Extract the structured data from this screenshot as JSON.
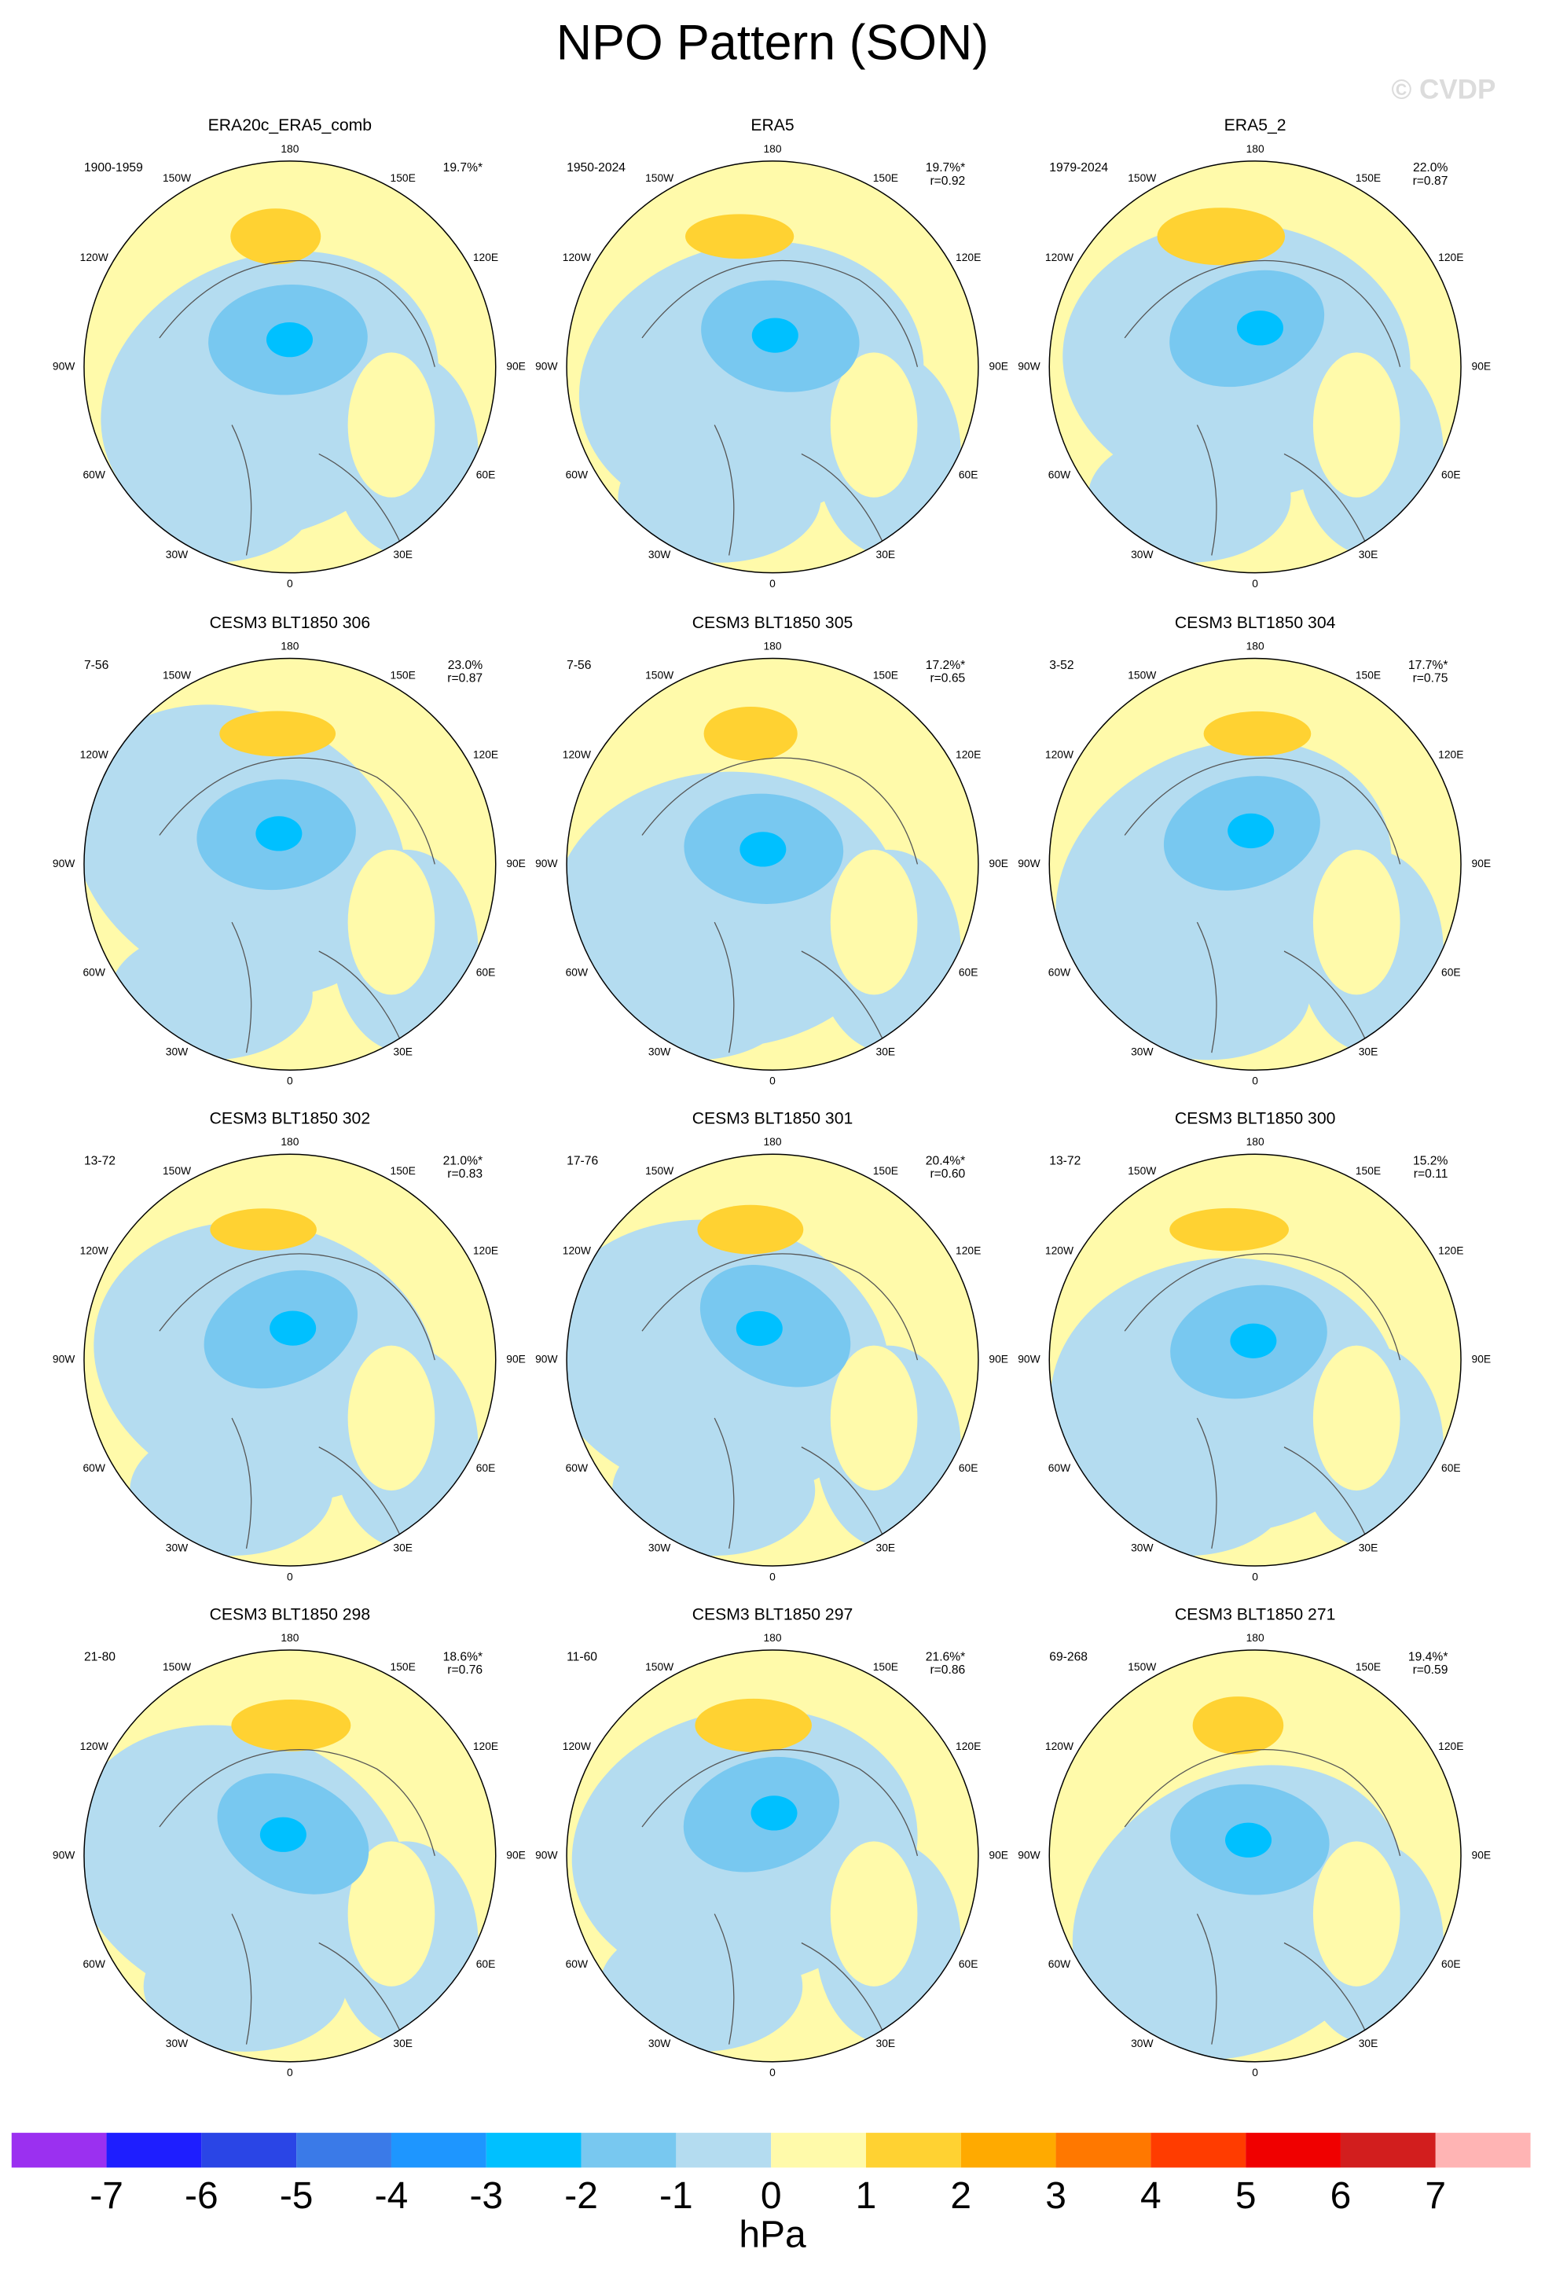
{
  "title": "NPO Pattern (SON)",
  "watermark": "© CVDP",
  "longitude_labels": [
    "180",
    "150E",
    "120E",
    "90E",
    "60E",
    "30E",
    "0",
    "30W",
    "60W",
    "90W",
    "120W",
    "150W"
  ],
  "panels": [
    {
      "title": "ERA20c_ERA5_comb",
      "period": "1900-1959",
      "percent": "19.7%*"
    },
    {
      "title": "ERA5",
      "period": "1950-2024",
      "percent": "19.7%*",
      "r": "r=0.92"
    },
    {
      "title": "ERA5_2",
      "period": "1979-2024",
      "percent": "22.0%",
      "r": "r=0.87"
    },
    {
      "title": "CESM3 BLT1850 306",
      "period": "7-56",
      "percent": "23.0%",
      "r": "r=0.87"
    },
    {
      "title": "CESM3 BLT1850 305",
      "period": "7-56",
      "percent": "17.2%*",
      "r": "r=0.65"
    },
    {
      "title": "CESM3 BLT1850 304",
      "period": "3-52",
      "percent": "17.7%*",
      "r": "r=0.75"
    },
    {
      "title": "CESM3 BLT1850 302",
      "period": "13-72",
      "percent": "21.0%*",
      "r": "r=0.83"
    },
    {
      "title": "CESM3 BLT1850 301",
      "period": "17-76",
      "percent": "20.4%*",
      "r": "r=0.60"
    },
    {
      "title": "CESM3 BLT1850 300",
      "period": "13-72",
      "percent": "15.2%",
      "r": "r=0.11"
    },
    {
      "title": "CESM3 BLT1850 298",
      "period": "21-80",
      "percent": "18.6%*",
      "r": "r=0.76"
    },
    {
      "title": "CESM3 BLT1850 297",
      "period": "11-60",
      "percent": "21.6%*",
      "r": "r=0.86"
    },
    {
      "title": "CESM3 BLT1850 271",
      "period": "69-268",
      "percent": "19.4%*",
      "r": "r=0.59"
    }
  ],
  "colorbar": {
    "colors": [
      "#9b30f0",
      "#1e1eff",
      "#2a45e6",
      "#3a7ae8",
      "#1e96ff",
      "#00c0ff",
      "#78c8f0",
      "#b4dcf0",
      "#fffaaa",
      "#ffd232",
      "#ffaa00",
      "#ff7800",
      "#ff3c00",
      "#f00000",
      "#d21e1e",
      "#ffb4b4"
    ],
    "ticks": [
      -7,
      -6,
      -5,
      -4,
      -3,
      -2,
      -1,
      0,
      1,
      2,
      3,
      4,
      5,
      6,
      7
    ],
    "unit": "hPa"
  }
}
